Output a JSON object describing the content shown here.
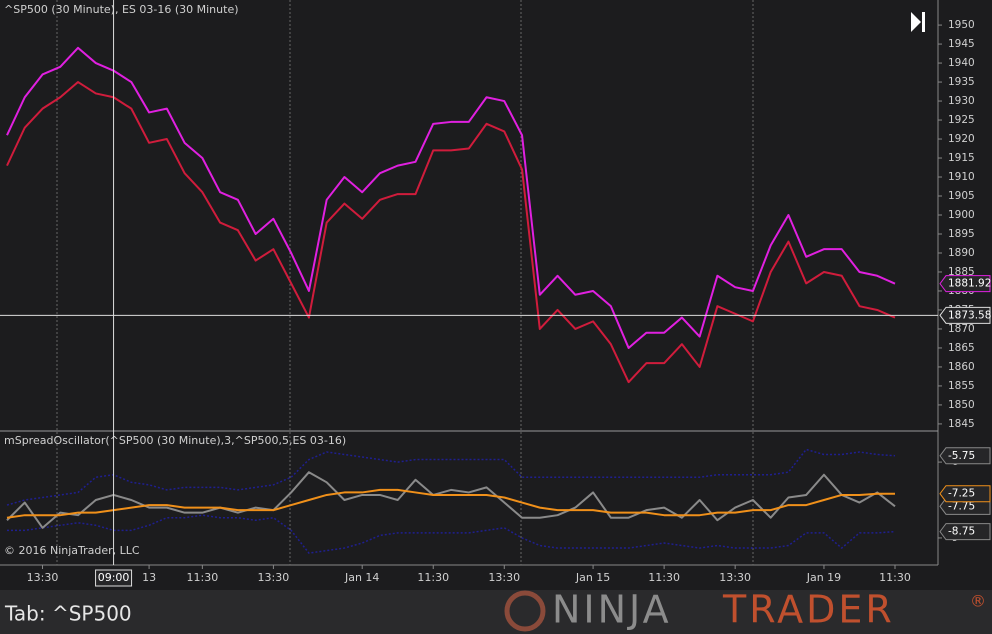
{
  "chart_data": [
    {
      "type": "line",
      "title": "^SP500 (30 Minute), ES 03-16 (30 Minute)",
      "categories": [
        null,
        null,
        "13:30",
        null,
        null,
        null,
        null,
        null,
        "13",
        null,
        null,
        "11:30",
        null,
        null,
        null,
        "13:30",
        null,
        null,
        null,
        null,
        "Jan 14",
        null,
        null,
        null,
        "11:30",
        null,
        null,
        null,
        "13:30",
        null,
        null,
        null,
        null,
        "Jan 15",
        null,
        null,
        null,
        "11:30",
        null,
        null,
        null,
        "13:30",
        null,
        null,
        null,
        null,
        "Jan 19",
        null,
        null,
        null,
        "11:30"
      ],
      "ylim": [
        1843.4,
        1956.6
      ],
      "yticks": [
        1845,
        1850,
        1855,
        1860,
        1865,
        1870,
        1875,
        1880,
        1885,
        1890,
        1895,
        1900,
        1905,
        1910,
        1915,
        1920,
        1925,
        1930,
        1935,
        1940,
        1945,
        1950
      ],
      "series": [
        {
          "name": "^SP500",
          "color": "#e020e0",
          "value_box": true,
          "values": [
            1921,
            1931,
            1937,
            1939,
            1944,
            1940,
            1938,
            1935,
            1927,
            1928,
            1919,
            1915,
            1906,
            1904,
            1895,
            1899,
            1890,
            1880,
            1904,
            1910,
            1906,
            1911,
            1913,
            1914,
            1924,
            1924.5,
            1924.5,
            1931,
            1930,
            1921,
            1879,
            1884,
            1879,
            1880,
            1876,
            1865,
            1869,
            1869,
            1873,
            1868,
            1884,
            1881,
            1880,
            1892,
            1900,
            1889,
            1891,
            1891,
            1885,
            1884,
            1881.92
          ]
        },
        {
          "name": "ES 03-16",
          "color": "#d01c3c",
          "value_box": false,
          "values": [
            1913,
            1923,
            1928,
            1931,
            1935,
            1932,
            1931,
            1928,
            1919,
            1920,
            1911,
            1906,
            1898,
            1896,
            1888,
            1891,
            1882,
            1873,
            1898,
            1903,
            1899,
            1904,
            1905.5,
            1905.5,
            1917,
            1917,
            1917.5,
            1924,
            1922,
            1912,
            1870,
            1875,
            1870,
            1872,
            1866,
            1856,
            1861,
            1861,
            1866,
            1860,
            1876,
            1874,
            1872,
            1885,
            1893,
            1882,
            1885,
            1884,
            1876,
            1875,
            1873
          ]
        }
      ]
    },
    {
      "type": "line",
      "title": "mSpreadOscillator(^SP500 (30 Minute),3,^SP500,5,ES 03-16)",
      "ylim": [
        -10.07,
        -4.81
      ],
      "yticks": [
        -6,
        -9
      ],
      "series": [
        {
          "name": "Upper",
          "color": "#1f1f8f",
          "dash": true,
          "value_box": true,
          "values": [
            -7.7,
            -7.5,
            -7.4,
            -7.3,
            -7.2,
            -6.6,
            -6.5,
            -6.8,
            -6.9,
            -7.1,
            -7.0,
            -7.0,
            -7.0,
            -7.1,
            -7.0,
            -6.9,
            -6.6,
            -5.9,
            -5.6,
            -5.7,
            -5.8,
            -5.9,
            -6.0,
            -5.9,
            -5.9,
            -5.9,
            -5.9,
            -5.9,
            -5.9,
            -6.6,
            -6.6,
            -6.6,
            -6.6,
            -6.6,
            -6.6,
            -6.6,
            -6.6,
            -6.6,
            -6.6,
            -6.6,
            -6.5,
            -6.5,
            -6.5,
            -6.5,
            -6.4,
            -5.5,
            -5.7,
            -5.7,
            -5.6,
            -5.7,
            -5.75
          ]
        },
        {
          "name": "Lower",
          "color": "#1f1f8f",
          "dash": true,
          "value_box": true,
          "values": [
            -8.7,
            -8.7,
            -8.6,
            -8.5,
            -8.4,
            -8.5,
            -8.7,
            -8.7,
            -8.5,
            -8.2,
            -8.2,
            -8.1,
            -8.2,
            -8.2,
            -8.3,
            -8.2,
            -8.7,
            -9.6,
            -9.5,
            -9.4,
            -9.2,
            -8.9,
            -8.8,
            -8.8,
            -8.8,
            -8.8,
            -8.8,
            -8.7,
            -8.6,
            -9.0,
            -9.3,
            -9.4,
            -9.4,
            -9.4,
            -9.4,
            -9.4,
            -9.3,
            -9.2,
            -9.3,
            -9.4,
            -9.3,
            -9.4,
            -9.4,
            -9.4,
            -9.3,
            -8.8,
            -8.8,
            -9.4,
            -8.8,
            -8.8,
            -8.75
          ]
        },
        {
          "name": "Spread",
          "color": "#8a8a8a",
          "dash": false,
          "value_box": true,
          "values": [
            -8.3,
            -7.6,
            -8.6,
            -8.0,
            -8.1,
            -7.5,
            -7.3,
            -7.5,
            -7.8,
            -7.8,
            -8.0,
            -8.0,
            -7.8,
            -8.0,
            -7.8,
            -7.9,
            -7.2,
            -6.4,
            -6.8,
            -7.5,
            -7.3,
            -7.3,
            -7.5,
            -6.7,
            -7.3,
            -7.1,
            -7.2,
            -7.0,
            -7.6,
            -8.2,
            -8.2,
            -8.1,
            -7.8,
            -7.2,
            -8.2,
            -8.2,
            -7.9,
            -7.8,
            -8.2,
            -7.5,
            -8.3,
            -7.8,
            -7.5,
            -8.2,
            -7.4,
            -7.3,
            -6.5,
            -7.3,
            -7.6,
            -7.2,
            -7.75
          ]
        },
        {
          "name": "Average",
          "color": "#f0901a",
          "dash": false,
          "value_box": true,
          "values": [
            -8.2,
            -8.1,
            -8.1,
            -8.1,
            -8.0,
            -8.0,
            -7.9,
            -7.8,
            -7.7,
            -7.7,
            -7.8,
            -7.8,
            -7.8,
            -7.9,
            -7.9,
            -7.9,
            -7.7,
            -7.5,
            -7.3,
            -7.2,
            -7.2,
            -7.1,
            -7.1,
            -7.2,
            -7.3,
            -7.3,
            -7.3,
            -7.3,
            -7.4,
            -7.6,
            -7.8,
            -7.9,
            -7.9,
            -7.9,
            -8.0,
            -8.0,
            -8.0,
            -8.1,
            -8.1,
            -8.1,
            -8.0,
            -8.0,
            -7.9,
            -7.9,
            -7.7,
            -7.7,
            -7.5,
            -7.3,
            -7.3,
            -7.25,
            -7.25
          ]
        }
      ]
    }
  ],
  "crosshair": {
    "index": 6,
    "time": "09:00",
    "price": 1873.58
  },
  "copyright": "© 2016 NinjaTrader, LLC",
  "footer": {
    "tab": "Tab: ^SP500",
    "logo_left": "NINJA",
    "logo_right": "TRADER",
    "logo_mark": "®"
  }
}
